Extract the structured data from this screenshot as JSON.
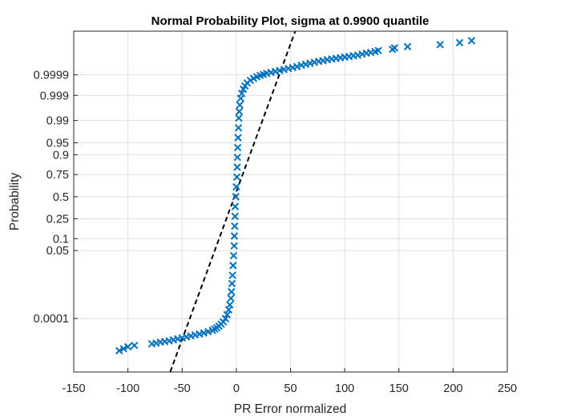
{
  "chart_data": {
    "type": "scatter",
    "title": "Normal Probability Plot, sigma at 0.9900 quantile",
    "xlabel": "PR Error normalized",
    "ylabel": "Probability",
    "xlim": [
      -150,
      250
    ],
    "x_ticks": [
      -150,
      -100,
      -50,
      0,
      50,
      100,
      150,
      200,
      250
    ],
    "y_ticks": [
      {
        "p": 0.0001,
        "label": "0.0001"
      },
      {
        "p": 0.05,
        "label": "0.05"
      },
      {
        "p": 0.1,
        "label": "0.1"
      },
      {
        "p": 0.25,
        "label": "0.25"
      },
      {
        "p": 0.5,
        "label": "0.5"
      },
      {
        "p": 0.75,
        "label": "0.75"
      },
      {
        "p": 0.9,
        "label": "0.9"
      },
      {
        "p": 0.95,
        "label": "0.95"
      },
      {
        "p": 0.99,
        "label": "0.99"
      },
      {
        "p": 0.999,
        "label": "0.999"
      },
      {
        "p": 0.9999,
        "label": "0.9999"
      }
    ],
    "grid": true,
    "colors": {
      "marker": "#0072BD",
      "fit_line": "#000000",
      "grid": "#e0e0e0",
      "axis": "#262626"
    },
    "series": [
      {
        "marker": "x",
        "data_z": [
          [
            -108,
            -4.7
          ],
          [
            -104,
            -4.64
          ],
          [
            -100,
            -4.58
          ],
          [
            -94,
            -4.54
          ],
          [
            -78,
            -4.49
          ],
          [
            -74,
            -4.47
          ],
          [
            -70,
            -4.44
          ],
          [
            -66,
            -4.42
          ],
          [
            -62,
            -4.4
          ],
          [
            -58,
            -4.37
          ],
          [
            -54,
            -4.34
          ],
          [
            -50,
            -4.31
          ],
          [
            -46,
            -4.28
          ],
          [
            -42,
            -4.25
          ],
          [
            -38,
            -4.22
          ],
          [
            -34,
            -4.19
          ],
          [
            -30,
            -4.16
          ],
          [
            -26,
            -4.12
          ],
          [
            -22,
            -4.08
          ],
          [
            -20,
            -4.04
          ],
          [
            -18,
            -4.0
          ],
          [
            -16,
            -3.95
          ],
          [
            -14,
            -3.89
          ],
          [
            -12,
            -3.82
          ],
          [
            -10,
            -3.72
          ],
          [
            -8.5,
            -3.6
          ],
          [
            -7,
            -3.45
          ],
          [
            -6,
            -3.3
          ],
          [
            -5,
            -3.1
          ],
          [
            -4.5,
            -2.9
          ],
          [
            -4,
            -2.65
          ],
          [
            -3.5,
            -2.4
          ],
          [
            -3,
            -2.1
          ],
          [
            -2.5,
            -1.8
          ],
          [
            -2,
            -1.5
          ],
          [
            -1.8,
            -1.2
          ],
          [
            -1.5,
            -0.9
          ],
          [
            -1.2,
            -0.6
          ],
          [
            -1,
            -0.3
          ],
          [
            -0.5,
            0.0
          ],
          [
            0,
            0.3
          ],
          [
            0.5,
            0.6
          ],
          [
            0.8,
            0.9
          ],
          [
            1,
            1.2
          ],
          [
            1.3,
            1.5
          ],
          [
            1.6,
            1.8
          ],
          [
            2,
            2.1
          ],
          [
            2.3,
            2.4
          ],
          [
            2.7,
            2.6
          ],
          [
            3.2,
            2.8
          ],
          [
            4,
            3.0
          ],
          [
            5,
            3.15
          ],
          [
            6.5,
            3.28
          ],
          [
            8,
            3.38
          ],
          [
            10,
            3.47
          ],
          [
            13,
            3.55
          ],
          [
            16,
            3.61
          ],
          [
            19,
            3.66
          ],
          [
            22,
            3.7
          ],
          [
            25,
            3.73
          ],
          [
            28,
            3.76
          ],
          [
            32,
            3.79
          ],
          [
            36,
            3.82
          ],
          [
            40,
            3.85
          ],
          [
            44,
            3.88
          ],
          [
            48,
            3.91
          ],
          [
            52,
            3.94
          ],
          [
            56,
            3.97
          ],
          [
            60,
            4.01
          ],
          [
            64,
            4.04
          ],
          [
            68,
            4.07
          ],
          [
            72,
            4.1
          ],
          [
            76,
            4.13
          ],
          [
            80,
            4.15
          ],
          [
            84,
            4.18
          ],
          [
            88,
            4.2
          ],
          [
            92,
            4.22
          ],
          [
            96,
            4.24
          ],
          [
            100,
            4.26
          ],
          [
            104,
            4.28
          ],
          [
            108,
            4.3
          ],
          [
            112,
            4.32
          ],
          [
            116,
            4.35
          ],
          [
            120,
            4.38
          ],
          [
            124,
            4.4
          ],
          [
            128,
            4.43
          ],
          [
            131,
            4.46
          ],
          [
            144,
            4.5
          ],
          [
            146,
            4.54
          ],
          [
            158,
            4.58
          ],
          [
            188,
            4.64
          ],
          [
            206,
            4.7
          ],
          [
            217,
            4.76
          ]
        ]
      }
    ],
    "fit_line": {
      "style": "dashed",
      "points_z": [
        [
          -66,
          -5.8
        ],
        [
          66,
          6.1
        ]
      ]
    }
  }
}
